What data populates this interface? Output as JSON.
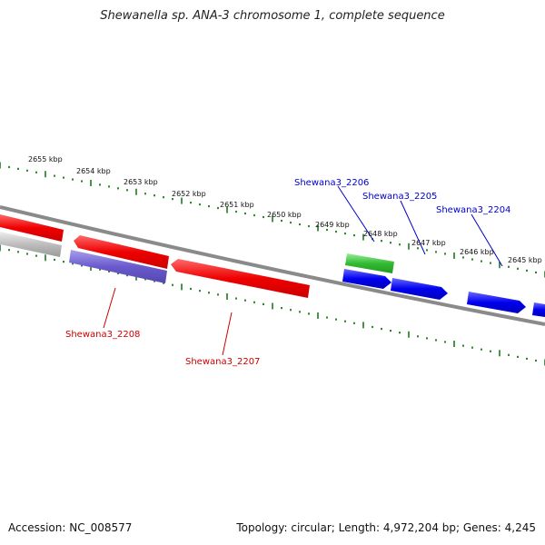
{
  "title": "Shewanella sp. ANA-3 chromosome 1, complete sequence",
  "footer": {
    "accession": "Accession: NC_008577",
    "summary": "Topology: circular; Length: 4,972,204 bp; Genes: 4,245"
  },
  "colors": {
    "backbone": "#8a8a8a",
    "ticks": "#1a7a1a",
    "forward_strand": "#0000ee",
    "reverse_strand": "#ee0000",
    "label_forward": "#0000cc",
    "label_reverse": "#cc0000"
  },
  "scale_ticks": [
    {
      "label": "2655 kbp"
    },
    {
      "label": "2654 kbp"
    },
    {
      "label": "2653 kbp"
    },
    {
      "label": "2652 kbp"
    },
    {
      "label": "2651 kbp"
    },
    {
      "label": "2650 kbp"
    },
    {
      "label": "2649 kbp"
    },
    {
      "label": "2648 kbp"
    },
    {
      "label": "2647 kbp"
    },
    {
      "label": "2646 kbp"
    },
    {
      "label": "2645 kbp"
    }
  ],
  "gene_labels": [
    {
      "name": "Shewana3_2206",
      "strand": "forward"
    },
    {
      "name": "Shewana3_2205",
      "strand": "forward"
    },
    {
      "name": "Shewana3_2204",
      "strand": "forward"
    },
    {
      "name": "Shewana3_2208",
      "strand": "reverse"
    },
    {
      "name": "Shewana3_2207",
      "strand": "reverse"
    }
  ]
}
